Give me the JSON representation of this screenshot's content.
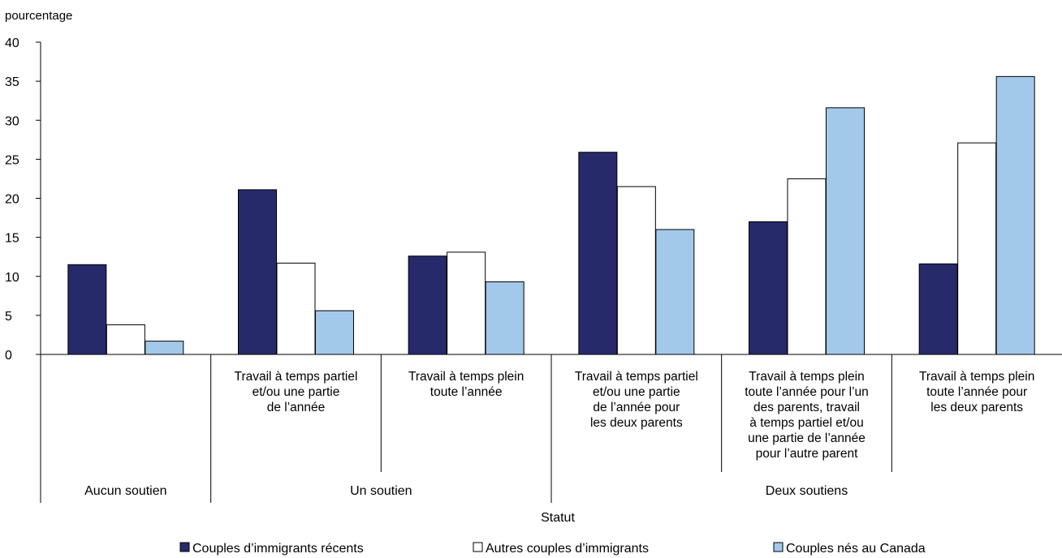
{
  "chart_data": {
    "type": "bar",
    "ylabel": "pourcentage",
    "xlabel": "Statut",
    "ylim": [
      0,
      40
    ],
    "yticks": [
      "0",
      "5",
      "10",
      "15",
      "20",
      "25",
      "30",
      "35",
      "40"
    ],
    "grid": false,
    "legend_position": "bottom",
    "categories": [
      [
        ""
      ],
      [
        "Travail à temps partiel",
        "et/ou une partie",
        "de l’année"
      ],
      [
        "Travail à temps plein",
        "toute l’année"
      ],
      [
        "Travail à temps partiel",
        "et/ou une partie",
        "de l’année pour",
        "les deux parents"
      ],
      [
        "Travail à temps plein",
        "toute l’année pour l’un",
        "des parents, travail",
        "à temps partiel et/ou",
        "une partie de l’année",
        "pour l’autre parent"
      ],
      [
        "Travail à temps plein",
        "toute l’année pour",
        "les deux parents"
      ]
    ],
    "groups": [
      {
        "label": "Aucun soutien",
        "span": [
          0,
          0
        ]
      },
      {
        "label": "Un soutien",
        "span": [
          1,
          2
        ]
      },
      {
        "label": "Deux soutiens",
        "span": [
          3,
          5
        ]
      }
    ],
    "series": [
      {
        "name": "Couples d’immigrants récents",
        "color": "#262a6b",
        "values": [
          11.5,
          21.1,
          12.6,
          25.9,
          17.0,
          11.6
        ]
      },
      {
        "name": "Autres couples d’immigrants",
        "color": "#ffffff",
        "values": [
          3.8,
          11.7,
          13.1,
          21.5,
          22.5,
          27.1
        ]
      },
      {
        "name": "Couples nés au Canada",
        "color": "#a3c9ea",
        "values": [
          1.7,
          5.6,
          9.3,
          16.0,
          31.6,
          35.6
        ]
      }
    ]
  }
}
